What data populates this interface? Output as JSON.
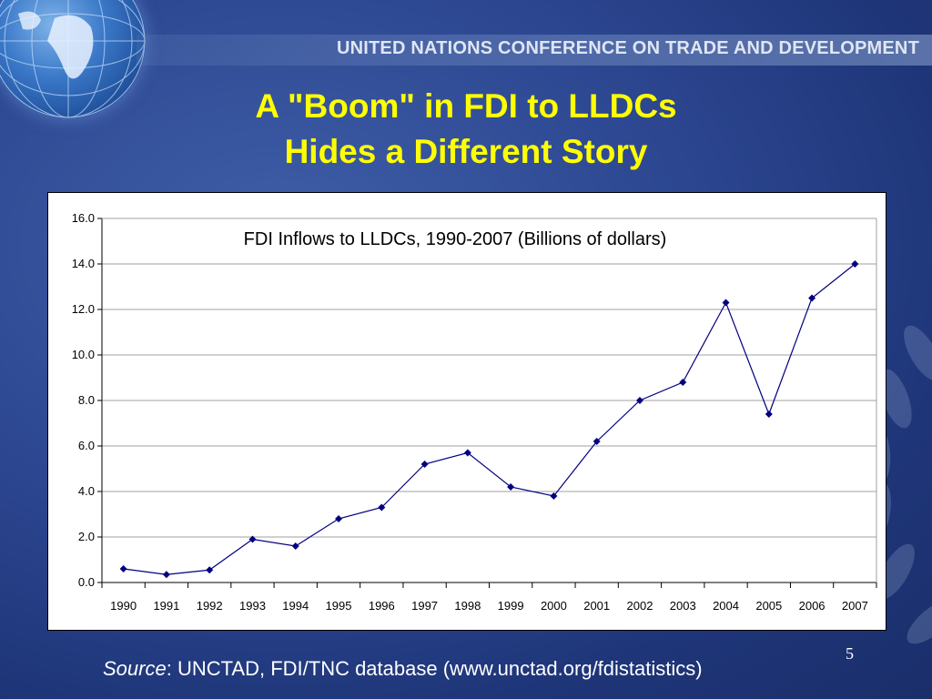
{
  "banner": {
    "text": "UNITED NATIONS CONFERENCE ON TRADE AND DEVELOPMENT"
  },
  "slide": {
    "title_line1": "A \"Boom\" in FDI to LLDCs",
    "title_line2": "Hides a Different Story",
    "page_number": "5",
    "source_label": "Source",
    "source_text": ": UNCTAD, FDI/TNC database (www.unctad.org/fdistatistics)"
  },
  "colors": {
    "title": "#ffff00",
    "series": "#000080",
    "grid": "#a0a0a0"
  },
  "chart_data": {
    "type": "line",
    "title": "FDI Inflows to LLDCs, 1990-2007 (Billions of dollars)",
    "xlabel": "",
    "ylabel": "",
    "categories": [
      "1990",
      "1991",
      "1992",
      "1993",
      "1994",
      "1995",
      "1996",
      "1997",
      "1998",
      "1999",
      "2000",
      "2001",
      "2002",
      "2003",
      "2004",
      "2005",
      "2006",
      "2007"
    ],
    "series": [
      {
        "values": [
          0.6,
          0.35,
          0.55,
          1.9,
          1.6,
          2.8,
          3.3,
          5.2,
          5.7,
          4.2,
          3.8,
          6.2,
          8.0,
          8.8,
          12.3,
          7.4,
          12.5,
          14.0
        ]
      }
    ],
    "ylim": [
      0,
      16
    ],
    "yticks": [
      "0.0",
      "2.0",
      "4.0",
      "6.0",
      "8.0",
      "10.0",
      "12.0",
      "14.0",
      "16.0"
    ],
    "grid": true,
    "legend": "none"
  }
}
